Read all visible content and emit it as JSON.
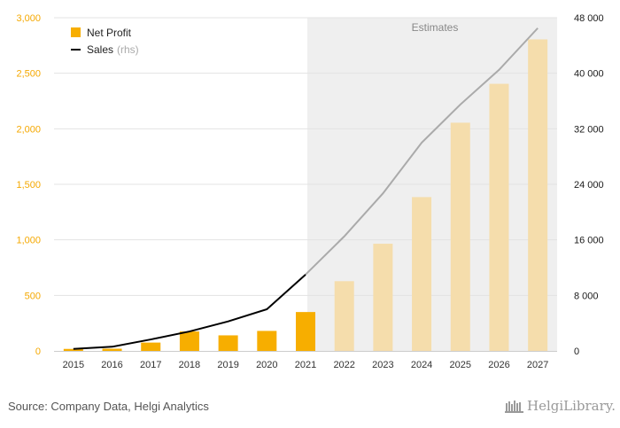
{
  "chart_data": {
    "type": "bar",
    "categories": [
      "2015",
      "2016",
      "2017",
      "2018",
      "2019",
      "2020",
      "2021",
      "2022",
      "2023",
      "2024",
      "2025",
      "2026",
      "2027"
    ],
    "series": [
      {
        "name": "Net Profit",
        "type": "bar",
        "axis": "left",
        "values": [
          18,
          20,
          75,
          175,
          140,
          180,
          350,
          628,
          965,
          1385,
          2055,
          2405,
          2805
        ]
      },
      {
        "name": "Sales",
        "name_note": "(rhs)",
        "type": "line",
        "axis": "right",
        "values": [
          280,
          600,
          1650,
          2800,
          4250,
          6000,
          11000,
          16500,
          22700,
          30000,
          35500,
          40500,
          46500
        ]
      }
    ],
    "ylim_left": [
      0,
      3000
    ],
    "yticks_left": [
      {
        "value": 0,
        "label": "0"
      },
      {
        "value": 500,
        "label": "500"
      },
      {
        "value": 1000,
        "label": "1,000"
      },
      {
        "value": 1500,
        "label": "1,500"
      },
      {
        "value": 2000,
        "label": "2,000"
      },
      {
        "value": 2500,
        "label": "2,500"
      },
      {
        "value": 3000,
        "label": "3,000"
      }
    ],
    "ylim_right": [
      0,
      48000
    ],
    "yticks_right": [
      {
        "value": 0,
        "label": "0"
      },
      {
        "value": 8000,
        "label": "8 000"
      },
      {
        "value": 16000,
        "label": "16 000"
      },
      {
        "value": 24000,
        "label": "24 000"
      },
      {
        "value": 32000,
        "label": "32 000"
      },
      {
        "value": 40000,
        "label": "40 000"
      },
      {
        "value": 48000,
        "label": "48 000"
      }
    ],
    "estimates_from": "2022",
    "estimates_label": "Estimates",
    "grid": true,
    "legend_position": "top-left",
    "colors": {
      "bar_actual": "#f7ae00",
      "bar_estimate": "#f5ddac",
      "line_actual": "#000000",
      "line_estimate": "#aaaaaa",
      "estimate_bg": "#efefef"
    }
  },
  "source": "Source: Company Data, Helgi Analytics",
  "brand": "HelgiLibrary."
}
